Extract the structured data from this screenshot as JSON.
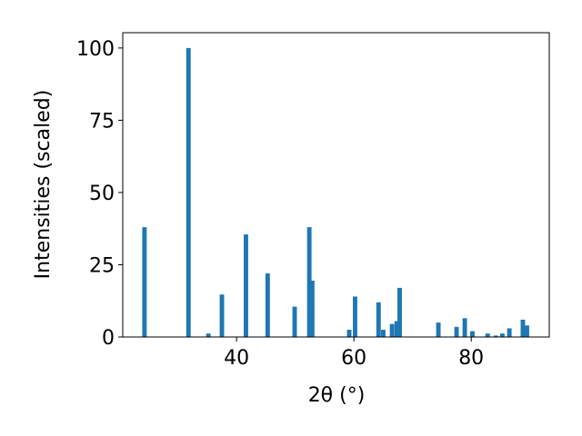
{
  "chart_data": {
    "type": "bar",
    "xlabel": "2θ (°)",
    "ylabel": "Intensities (scaled)",
    "x": [
      24.3,
      31.8,
      35.2,
      37.5,
      41.6,
      45.3,
      49.9,
      52.4,
      52.9,
      59.2,
      60.2,
      64.2,
      65.0,
      66.5,
      67.3,
      67.8,
      74.4,
      77.5,
      78.9,
      80.2,
      82.8,
      84.2,
      85.3,
      86.5,
      88.8,
      89.5
    ],
    "values": [
      38,
      100,
      1.2,
      14.7,
      35.5,
      22,
      10.5,
      38,
      19.5,
      2.5,
      14,
      12,
      2.5,
      4.5,
      5.5,
      17,
      5,
      3.5,
      6.5,
      2,
      1.2,
      0.5,
      1.2,
      3,
      6,
      4
    ],
    "color": "#1f77b4",
    "xlim": [
      20.6,
      93.3
    ],
    "xticks": [
      40,
      60,
      80
    ],
    "ylim": [
      0,
      105.3
    ],
    "yticks": [
      0,
      25,
      50,
      75,
      100
    ]
  }
}
